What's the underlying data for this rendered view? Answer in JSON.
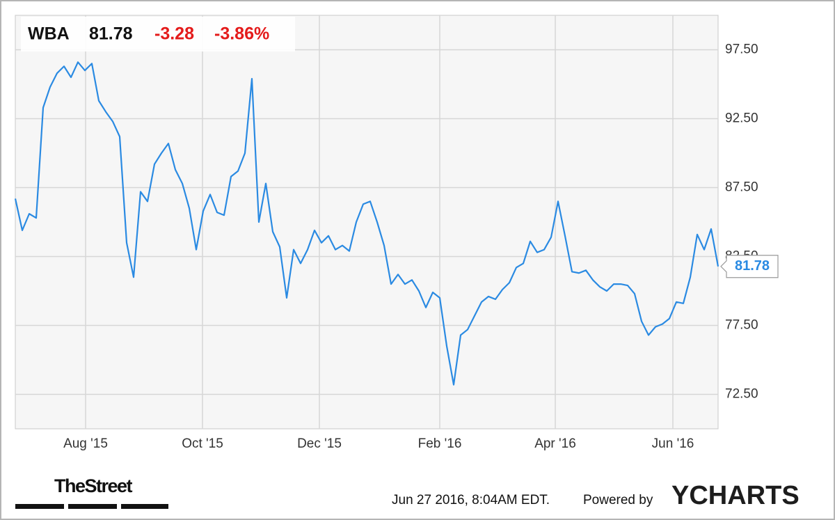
{
  "chart_data": {
    "type": "line",
    "ticker": "WBA",
    "change": "-3.28",
    "change_percent": "-3.86%",
    "color": "#2a8ae2",
    "grid": true,
    "values": [
      86.7,
      84.4,
      85.6,
      85.3,
      93.3,
      94.8,
      95.8,
      96.3,
      95.5,
      96.6,
      96.0,
      96.5,
      93.8,
      93.0,
      92.3,
      91.2,
      83.5,
      81.0,
      87.2,
      86.5,
      89.2,
      90.0,
      90.7,
      88.8,
      87.8,
      86.0,
      83.0,
      85.8,
      87.0,
      85.7,
      85.5,
      88.3,
      88.7,
      90.0,
      95.4,
      85.0,
      87.8,
      84.3,
      83.2,
      79.5,
      83.0,
      82.0,
      83.0,
      84.4,
      83.5,
      84.0,
      83.0,
      83.3,
      82.9,
      85.0,
      86.3,
      86.5,
      85.0,
      83.3,
      80.5,
      81.2,
      80.5,
      80.8,
      80.0,
      78.8,
      79.9,
      79.5,
      76.0,
      73.2,
      76.8,
      77.2,
      78.2,
      79.2,
      79.6,
      79.4,
      80.1,
      80.6,
      81.7,
      82.0,
      83.6,
      82.8,
      83.0,
      83.9,
      86.5,
      84.0,
      81.4,
      81.3,
      81.5,
      80.8,
      80.3,
      80.0,
      80.5,
      80.5,
      80.4,
      79.8,
      77.8,
      76.8,
      77.4,
      77.6,
      78.0,
      79.2,
      79.1,
      81.0,
      84.1,
      83.0,
      84.5,
      81.78
    ],
    "xlim": [
      0,
      101
    ],
    "xticks": [
      {
        "value": 10.1,
        "label": "Aug '15"
      },
      {
        "value": 26.9,
        "label": "Oct '15"
      },
      {
        "value": 43.7,
        "label": "Dec '15"
      },
      {
        "value": 61,
        "label": "Feb '16"
      },
      {
        "value": 77.6,
        "label": "Apr '16"
      },
      {
        "value": 94.5,
        "label": "Jun '16"
      }
    ],
    "ylim": [
      70,
      100
    ],
    "yticks": [
      {
        "value": 72.5,
        "label": "72.50"
      },
      {
        "value": 77.5,
        "label": "77.50"
      },
      {
        "value": 82.5,
        "label": "82.50"
      },
      {
        "value": 87.5,
        "label": "87.50"
      },
      {
        "value": 92.5,
        "label": "92.50"
      },
      {
        "value": 97.5,
        "label": "97.50"
      }
    ]
  },
  "footer": {
    "brand": "TheStreet",
    "timestamp": "Jun 27 2016, 8:04AM EDT.",
    "powered_by": "Powered by",
    "logo": "YCHARTS"
  }
}
